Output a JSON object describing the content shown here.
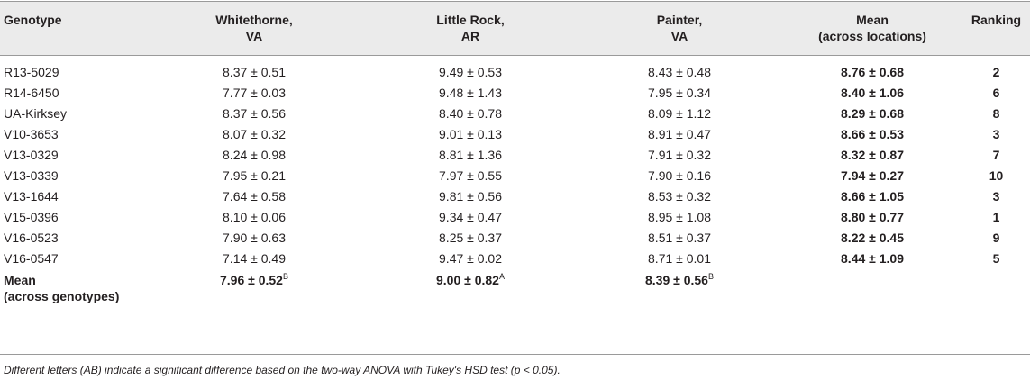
{
  "table": {
    "headers": [
      {
        "line1": "Genotype",
        "line2": ""
      },
      {
        "line1": "Whitethorne,",
        "line2": "VA"
      },
      {
        "line1": "Little Rock,",
        "line2": "AR"
      },
      {
        "line1": "Painter,",
        "line2": "VA"
      },
      {
        "line1": "Mean",
        "line2": "(across locations)"
      },
      {
        "line1": "Ranking",
        "line2": ""
      }
    ],
    "rows": [
      [
        "R13-5029",
        "8.37 ± 0.51",
        "9.49 ± 0.53",
        "8.43 ± 0.48",
        "8.76 ± 0.68",
        "2"
      ],
      [
        "R14-6450",
        "7.77 ± 0.03",
        "9.48 ± 1.43",
        "7.95 ± 0.34",
        "8.40 ± 1.06",
        "6"
      ],
      [
        "UA-Kirksey",
        "8.37 ± 0.56",
        "8.40 ± 0.78",
        "8.09 ± 1.12",
        "8.29 ± 0.68",
        "8"
      ],
      [
        "V10-3653",
        "8.07 ± 0.32",
        "9.01 ± 0.13",
        "8.91 ± 0.47",
        "8.66 ± 0.53",
        "3"
      ],
      [
        "V13-0329",
        "8.24 ± 0.98",
        "8.81 ± 1.36",
        "7.91 ± 0.32",
        "8.32 ± 0.87",
        "7"
      ],
      [
        "V13-0339",
        "7.95 ± 0.21",
        "7.97 ± 0.55",
        "7.90 ± 0.16",
        "7.94 ± 0.27",
        "10"
      ],
      [
        "V13-1644",
        "7.64 ± 0.58",
        "9.81 ± 0.56",
        "8.53 ± 0.32",
        "8.66 ± 1.05",
        "3"
      ],
      [
        "V15-0396",
        "8.10 ± 0.06",
        "9.34 ± 0.47",
        "8.95 ± 1.08",
        "8.80 ± 0.77",
        "1"
      ],
      [
        "V16-0523",
        "7.90 ± 0.63",
        "8.25 ± 0.37",
        "8.51 ± 0.37",
        "8.22 ± 0.45",
        "9"
      ],
      [
        "V16-0547",
        "7.14 ± 0.49",
        "9.47 ± 0.02",
        "8.71 ± 0.01",
        "8.44 ± 1.09",
        "5"
      ]
    ],
    "mean_row": {
      "label_line1": "Mean",
      "label_line2": "(across genotypes)",
      "values": [
        {
          "value": "7.96 ± 0.52",
          "letter": "B"
        },
        {
          "value": "9.00 ± 0.82",
          "letter": "A"
        },
        {
          "value": "8.39 ± 0.56",
          "letter": "B"
        }
      ]
    }
  },
  "footnote": "Different letters (AB) indicate a significant difference based on the two-way ANOVA with Tukey's HSD test (p < 0.05)."
}
